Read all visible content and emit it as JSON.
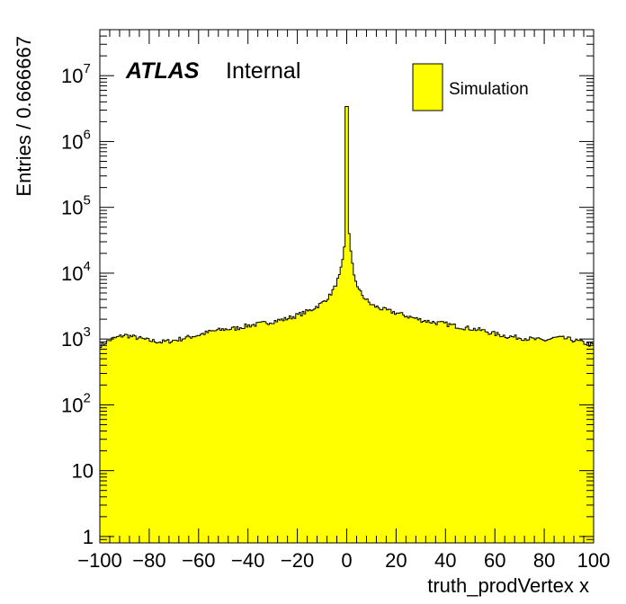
{
  "chart_data": {
    "type": "bar",
    "histogram": true,
    "title": "",
    "xlabel": "truth_prodVertex x",
    "ylabel": "Entries / 0.666667",
    "xlim": [
      -100,
      100
    ],
    "ylim": [
      0.8,
      50000000
    ],
    "log_y": true,
    "grid": false,
    "bin_width": 0.666667,
    "x_ticks": [
      -100,
      -80,
      -60,
      -40,
      -20,
      0,
      20,
      40,
      60,
      80,
      100
    ],
    "x_tick_labels": [
      "−100",
      "−80",
      "−60",
      "−40",
      "−20",
      "0",
      "20",
      "40",
      "60",
      "80",
      "100"
    ],
    "y_ticks": [
      {
        "value": 1,
        "base": "1",
        "exp": ""
      },
      {
        "value": 10,
        "base": "10",
        "exp": ""
      },
      {
        "value": 100,
        "base": "10",
        "exp": "2"
      },
      {
        "value": 1000,
        "base": "10",
        "exp": "3"
      },
      {
        "value": 10000,
        "base": "10",
        "exp": "4"
      },
      {
        "value": 100000,
        "base": "10",
        "exp": "5"
      },
      {
        "value": 1000000,
        "base": "10",
        "exp": "6"
      },
      {
        "value": 10000000,
        "base": "10",
        "exp": "7"
      }
    ],
    "series": [
      {
        "name": "Simulation",
        "color": "#ffff00",
        "line_color": "#000000",
        "profile": [
          [
            -100,
            800
          ],
          [
            -95,
            1000
          ],
          [
            -90,
            1150
          ],
          [
            -85,
            1050
          ],
          [
            -80,
            950
          ],
          [
            -75,
            900
          ],
          [
            -70,
            950
          ],
          [
            -65,
            1050
          ],
          [
            -60,
            1150
          ],
          [
            -55,
            1300
          ],
          [
            -50,
            1400
          ],
          [
            -45,
            1450
          ],
          [
            -40,
            1600
          ],
          [
            -35,
            1700
          ],
          [
            -30,
            1850
          ],
          [
            -25,
            2000
          ],
          [
            -20,
            2300
          ],
          [
            -15,
            2700
          ],
          [
            -10,
            3500
          ],
          [
            -7,
            4500
          ],
          [
            -5,
            6000
          ],
          [
            -3,
            9000
          ],
          [
            -2,
            13000
          ],
          [
            -1,
            25000
          ],
          [
            -0.5,
            70000
          ],
          [
            0,
            3400000
          ],
          [
            0.5,
            300000
          ],
          [
            1,
            40000
          ],
          [
            2,
            16000
          ],
          [
            3,
            9000
          ],
          [
            5,
            5500
          ],
          [
            7,
            4300
          ],
          [
            10,
            3300
          ],
          [
            15,
            2800
          ],
          [
            20,
            2500
          ],
          [
            25,
            2200
          ],
          [
            30,
            1950
          ],
          [
            35,
            1800
          ],
          [
            40,
            1700
          ],
          [
            45,
            1550
          ],
          [
            50,
            1450
          ],
          [
            55,
            1350
          ],
          [
            60,
            1200
          ],
          [
            65,
            1100
          ],
          [
            70,
            1050
          ],
          [
            75,
            1000
          ],
          [
            80,
            950
          ],
          [
            85,
            1050
          ],
          [
            90,
            1000
          ],
          [
            95,
            900
          ],
          [
            100,
            800
          ]
        ]
      }
    ],
    "legend": {
      "position": "top-right",
      "entries": [
        "Simulation"
      ]
    }
  },
  "labels": {
    "atlas": "ATLAS",
    "internal": "Internal",
    "legend_entry": "Simulation",
    "xlabel": "truth_prodVertex x",
    "ylabel": "Entries / 0.666667"
  },
  "colors": {
    "fill": "#ffff00",
    "line": "#000000",
    "background": "#ffffff"
  }
}
